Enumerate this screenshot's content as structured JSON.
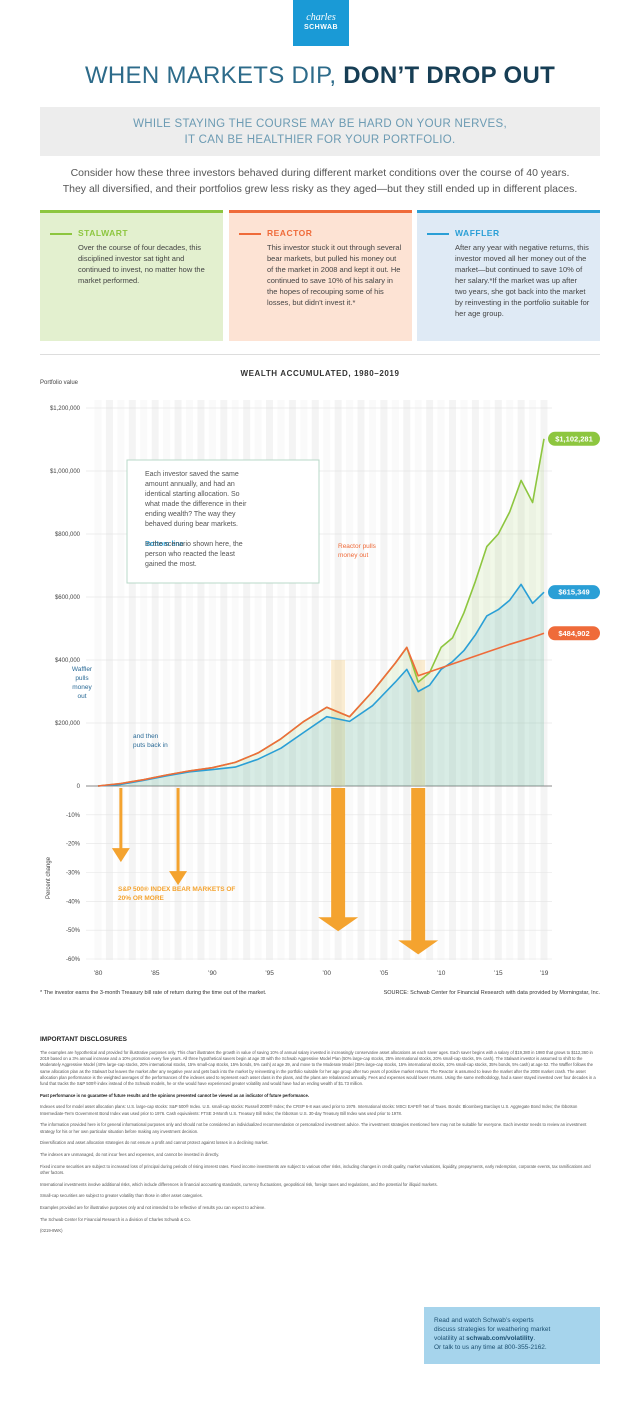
{
  "logo": {
    "line1": "charles",
    "line2": "SCHWAB"
  },
  "title": {
    "part1": "WHEN MARKETS DIP, ",
    "part2": "DON’T DROP OUT"
  },
  "subtitle": {
    "line1": "WHILE STAYING THE COURSE MAY BE HARD ON YOUR NERVES,",
    "line2": "IT CAN BE HEALTHIER FOR YOUR PORTFOLIO."
  },
  "intro": {
    "line1": "Consider how these three investors behaved during different market conditions over the course of 40 years.",
    "line2": "They all diversified, and their portfolios grew less risky as they aged—but they still ended up in different places."
  },
  "investors": [
    {
      "name": "STALWART",
      "text": "Over the course of four decades, this disciplined investor sat tight and continued to invest, no matter how the market performed."
    },
    {
      "name": "REACTOR",
      "text": "This investor stuck it out through several bear markets, but pulled his money out of the market in 2008 and kept it out. He continued to save 10% of his salary in the hopes of recouping some of his losses, but didn’t invest it.*"
    },
    {
      "name": "WAFFLER",
      "text": "After any year with negative returns, this investor moved all her money out of the market—but continued to save 10% of her salary.*If the market was up after two years, she got back into the market by reinvesting in the portfolio suitable for her age group."
    }
  ],
  "colors": {
    "stalwart": "#8dc63f",
    "reactor": "#ef6b3a",
    "waffler": "#2a9fd6",
    "bear": "#f4a32f",
    "title_dark": "#173e55",
    "title_light": "#2d6b8a"
  },
  "chart_data": {
    "type": "line",
    "title": "WEALTH ACCUMULATED, 1980–2019",
    "ylabel_top": "Portfolio value",
    "ylabel_bottom": "Percent change",
    "x_ticks": [
      "’80",
      "’85",
      "’90",
      "’95",
      "’00",
      "’05",
      "’10",
      "’15",
      "’19"
    ],
    "y_ticks_top": [
      "$1,200,000",
      "$1,000,000",
      "$800,000",
      "$600,000",
      "$400,000",
      "$200,000",
      "0"
    ],
    "y_ticks_bottom": [
      "-10%",
      "-20%",
      "-30%",
      "-40%",
      "-50%",
      "-60%"
    ],
    "ylim_top": [
      0,
      1200000
    ],
    "ylim_bottom": [
      -60,
      0
    ],
    "series": [
      {
        "name": "STALWART",
        "final_label": "$1,102,281",
        "x": [
          1980,
          1982,
          1984,
          1986,
          1988,
          1990,
          1992,
          1994,
          1996,
          1998,
          2000,
          2002,
          2004,
          2006,
          2007,
          2008,
          2009,
          2010,
          2011,
          2012,
          2013,
          2014,
          2015,
          2016,
          2017,
          2018,
          2019
        ],
        "y": [
          0,
          8000,
          20000,
          35000,
          48000,
          58000,
          75000,
          105000,
          150000,
          205000,
          250000,
          220000,
          300000,
          390000,
          440000,
          330000,
          360000,
          440000,
          470000,
          550000,
          650000,
          760000,
          800000,
          870000,
          970000,
          900000,
          1102281
        ]
      },
      {
        "name": "WAFFLER",
        "final_label": "$615,349",
        "x": [
          1980,
          1982,
          1984,
          1986,
          1988,
          1990,
          1992,
          1994,
          1996,
          1998,
          2000,
          2002,
          2004,
          2006,
          2007,
          2008,
          2009,
          2010,
          2011,
          2012,
          2013,
          2014,
          2015,
          2016,
          2017,
          2018,
          2019
        ],
        "y": [
          0,
          5000,
          18000,
          32000,
          45000,
          52000,
          60000,
          85000,
          120000,
          170000,
          220000,
          205000,
          255000,
          330000,
          370000,
          300000,
          320000,
          370000,
          395000,
          430000,
          480000,
          540000,
          560000,
          590000,
          640000,
          580000,
          615349
        ]
      },
      {
        "name": "REACTOR",
        "final_label": "$484,902",
        "x": [
          1980,
          1982,
          1984,
          1986,
          1988,
          1990,
          1992,
          1994,
          1996,
          1998,
          2000,
          2002,
          2004,
          2006,
          2007,
          2008,
          2010,
          2012,
          2014,
          2016,
          2018,
          2019
        ],
        "y": [
          0,
          8000,
          20000,
          35000,
          48000,
          58000,
          75000,
          105000,
          150000,
          205000,
          250000,
          220000,
          300000,
          390000,
          440000,
          350000,
          375000,
          400000,
          425000,
          450000,
          472000,
          484902
        ]
      }
    ],
    "bear_markets": [
      {
        "year": 1982,
        "drop": -25
      },
      {
        "year": 1987,
        "drop": -33
      },
      {
        "year": 2001,
        "drop": -49
      },
      {
        "year": 2008,
        "drop": -57
      }
    ],
    "annotations": {
      "box": "Each investor saved the same amount annually, and had an identical starting allocation. So what made the difference in their ending wealth? The way they behaved during bear markets.",
      "bottom_line_label": "Bottom line",
      "bottom_line": ": In the scenario shown here, the person who reacted the least gained the most.",
      "reactor": "Reactor pulls money out",
      "waffler_out": "Waffler pulls money out",
      "waffler_in": "and then puts back in",
      "bear": "S&P 500® INDEX BEAR MARKETS OF 20% OR MORE"
    }
  },
  "footnote": "* The investor earns the 3-month Treasury bill rate of return during the time out of the market.",
  "source": "SOURCE: Schwab Center for Financial Research with data provided by Morningstar, Inc.",
  "disclosures": {
    "title": "IMPORTANT DISCLOSURES",
    "paragraphs": [
      "The examples are hypothetical and provided for illustrative purposes only. This chart illustrates the growth in value of saving 10% of annual salary invested in increasingly conservative asset allocations as each saver ages. Each saver begins with a salary of $19,380 in 1980 that grows to $112,360 in 2019 based on a 3% annual increase and a 10% promotion every five years. All three hypothetical savers begin at age 30 with the Schwab Aggressive Model Plan (50% large-cap stocks, 25% international stocks, 20% small-cap stocks, 5% cash). The Stalwart investor is assumed to shift to the Moderately Aggressive Model (40% large-cap stocks, 20% international stocks, 15% small-cap stocks, 15% bonds, 5% cash) at age 39, and move to the Moderate Model (35% large-cap stocks, 15% international stocks, 10% small-cap stocks, 35% bonds, 5% cash) at age 52. The Waffler follows the same allocation plan as the Stalwart but leaves the market after any negative year and gets back into the market by reinvesting in the portfolio suitable for her age group after two years of positive market returns. The Reactor is assumed to leave the market after the 2008 market crash. The asset allocation plan performance is the weighted averages of the performances of the indexes used to represent each asset class in the plans, and the plans are rebalanced annually. Fees and expenses would lower returns. Using the same methodology, had a saver stayed invested over four decades in a fund that tracks the S&P 500® index instead of the Schwab models, he or she would have experienced greater volatility and would have had an ending wealth of $1.73 million.",
      "Past performance is no guarantee of future results and the opinions presented cannot be viewed as an indicator of future performance.",
      "Indexes used for model asset allocation plans: U.S. large-cap stocks: S&P 500® Index. U.S. small-cap stocks: Russell 2000® Index; the CRSP 6-8 was used prior to 1979. International stocks: MSCI EAFE® Net of Taxes. Bonds: Bloomberg Barclays U.S. Aggregate Bond Index; the Ibbotson Intermediate-Term Government Bond Index was used prior to 1976. Cash equivalents: FTSE 3-Month U.S. Treasury Bill Index; the Ibbotson U.S. 30-day Treasury Bill Index was used prior to 1978.",
      "The information provided here is for general informational purposes only and should not be considered an individualized recommendation or personalized investment advice. The investment strategies mentioned here may not be suitable for everyone. Each investor needs to review an investment strategy for his or her own particular situation before making any investment decision.",
      "Diversification and asset allocation strategies do not ensure a profit and cannot protect against losses in a declining market.",
      "The indexes are unmanaged, do not incur fees and expenses, and cannot be invested in directly.",
      "Fixed income securities are subject to increased loss of principal during periods of rising interest rates. Fixed income investments are subject to various other risks, including changes in credit quality, market valuations, liquidity, prepayments, early redemption, corporate events, tax ramifications and other factors.",
      "International investments involve additional risks, which include differences in financial accounting standards, currency fluctuations, geopolitical risk, foreign taxes and regulations, and the potential for illiquid markets.",
      "Small-cap securities are subject to greater volatility than those in other asset categories.",
      "Examples provided are for illustrative purposes only and not intended to be reflective of results you can expect to achieve.",
      "The Schwab Center for Financial Research is a division of Charles Schwab & Co.",
      "(0219-8WK)"
    ]
  },
  "cta": {
    "line1": "Read and watch Schwab’s experts",
    "line2": "discuss strategies for weathering market",
    "line3_pre": "volatility at ",
    "line3_link": "schwab.com/volatility",
    "line3_post": ".",
    "line4": "Or talk to us any time at 800-355-2162."
  }
}
